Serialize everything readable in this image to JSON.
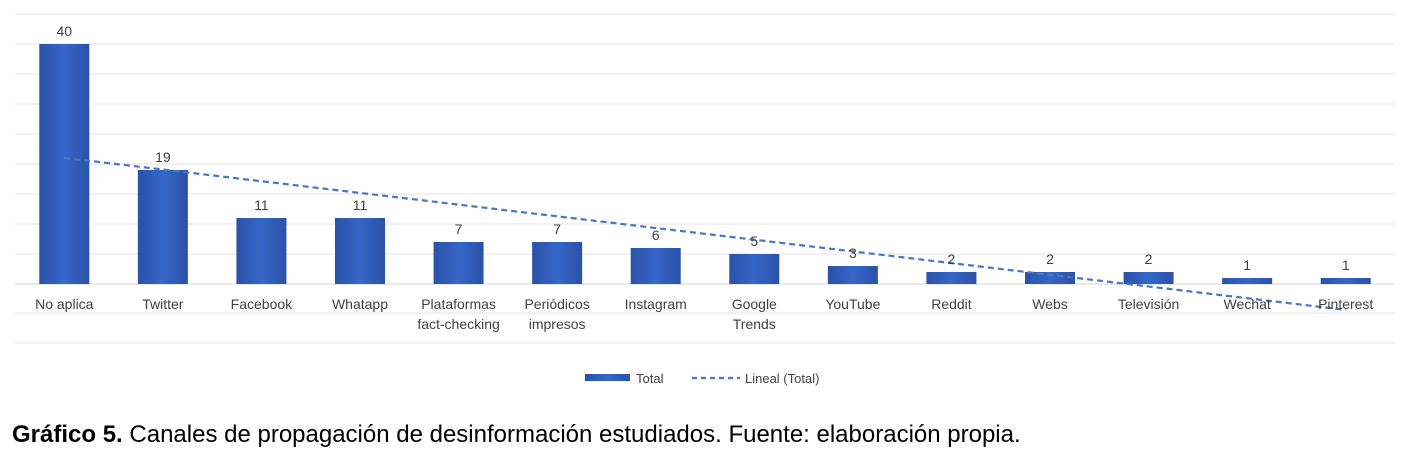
{
  "chart_data": {
    "type": "bar",
    "categories": [
      [
        "No aplica"
      ],
      [
        "Twitter"
      ],
      [
        "Facebook"
      ],
      [
        "Whatapp"
      ],
      [
        "Plataformas",
        "fact-checking"
      ],
      [
        "Periódicos",
        "impresos"
      ],
      [
        "Instagram"
      ],
      [
        "Google",
        "Trends"
      ],
      [
        "YouTube"
      ],
      [
        "Reddit"
      ],
      [
        "Webs"
      ],
      [
        "Televisión"
      ],
      [
        "Wechat"
      ],
      [
        "Pinterest"
      ]
    ],
    "series": [
      {
        "name": "Total",
        "values": [
          40,
          19,
          11,
          11,
          7,
          7,
          6,
          5,
          3,
          2,
          2,
          2,
          1,
          1
        ]
      }
    ],
    "trendline": {
      "name": "Lineal (Total)",
      "type": "linear"
    },
    "ylim": [
      0,
      45
    ],
    "grid": true,
    "legend_position": "bottom",
    "colors": {
      "bar": "#3566c8",
      "bar_dark": "#2a52a8",
      "trend": "#4a76c4",
      "grid": "#e3e3e3",
      "axis": "#d4d4d4"
    }
  },
  "caption": {
    "label": "Gráfico 5.",
    "text": " Canales de propagación de desinformación estudiados. Fuente: elaboración propia."
  }
}
